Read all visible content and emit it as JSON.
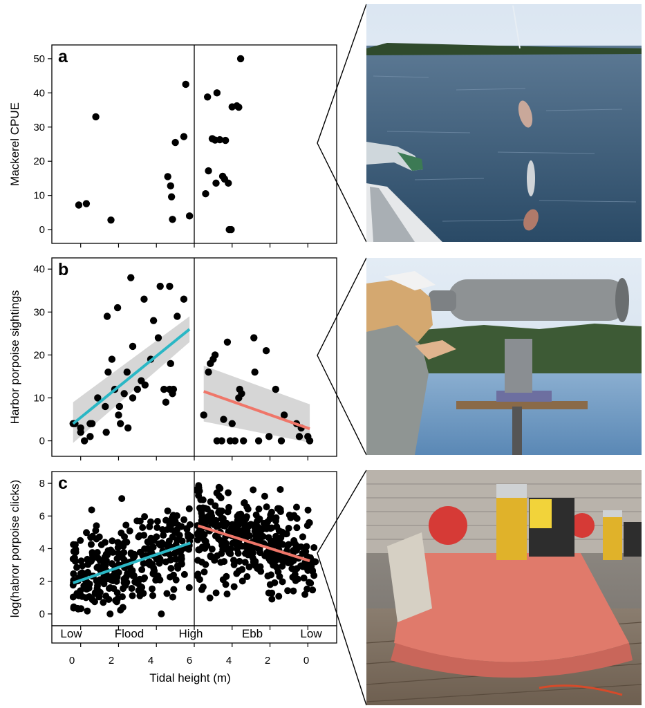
{
  "figure": {
    "x_axis_title": "Tidal height (m)",
    "x_tick_labels": [
      "0",
      "2",
      "4",
      "6",
      "4",
      "2",
      "0"
    ],
    "phase_labels": [
      "Low",
      "Flood",
      "High",
      "Ebb",
      "Low"
    ],
    "photo_descriptions": [],
    "photos": {
      "a": {
        "subject": "mackerel-catch-photo"
      },
      "b": {
        "subject": "big-eye-binocular-observer-photo"
      },
      "c": {
        "subject": "acoustic-mooring-photo"
      }
    }
  },
  "chart_data": [
    {
      "panel_label": "a",
      "type": "scatter",
      "ylabel": "Mackerel CPUE",
      "ylim": [
        -2,
        52
      ],
      "yticks": [
        0,
        10,
        20,
        30,
        40,
        50
      ],
      "xaxis_mode": "tidal-cycle",
      "x_domain": [
        -0.5,
        12.5
      ],
      "x_ticks_hidden_labels": true,
      "divider_at": 6,
      "points": [
        [
          -0.1,
          7.2
        ],
        [
          0.3,
          7.6
        ],
        [
          0.8,
          33
        ],
        [
          1.6,
          2.8
        ],
        [
          4.6,
          15.5
        ],
        [
          4.75,
          12.8
        ],
        [
          4.8,
          9.6
        ],
        [
          4.85,
          3.0
        ],
        [
          5.0,
          25.5
        ],
        [
          5.45,
          27.2
        ],
        [
          5.55,
          42.5
        ],
        [
          5.75,
          4.0
        ],
        [
          6.6,
          10.5
        ],
        [
          6.7,
          38.8
        ],
        [
          6.75,
          17.2
        ],
        [
          6.95,
          26.6
        ],
        [
          7.1,
          26.2
        ],
        [
          7.15,
          13.6
        ],
        [
          7.2,
          40.0
        ],
        [
          7.35,
          26.3
        ],
        [
          7.5,
          15.6
        ],
        [
          7.6,
          14.8
        ],
        [
          7.65,
          26.1
        ],
        [
          7.8,
          13.6
        ],
        [
          7.85,
          0.0
        ],
        [
          7.95,
          0.0
        ],
        [
          8.0,
          35.9
        ],
        [
          8.25,
          36.2
        ],
        [
          8.35,
          35.8
        ],
        [
          8.45,
          50.0
        ]
      ],
      "colors": {
        "points": "#000000"
      }
    },
    {
      "panel_label": "b",
      "type": "scatter",
      "ylabel": "Harbor porpoise sightings",
      "ylim": [
        -2,
        41
      ],
      "yticks": [
        0,
        10,
        20,
        30,
        40
      ],
      "xaxis_mode": "tidal-cycle",
      "x_domain": [
        -0.5,
        12.5
      ],
      "x_ticks_hidden_labels": true,
      "divider_at": 6,
      "points": [
        [
          -0.4,
          4
        ],
        [
          -0.3,
          4
        ],
        [
          0.0,
          3
        ],
        [
          0.0,
          2
        ],
        [
          0.2,
          0
        ],
        [
          0.5,
          4
        ],
        [
          0.6,
          4
        ],
        [
          0.5,
          1
        ],
        [
          0.9,
          10
        ],
        [
          1.3,
          8
        ],
        [
          1.35,
          2
        ],
        [
          1.4,
          29
        ],
        [
          1.45,
          16
        ],
        [
          1.65,
          19
        ],
        [
          1.8,
          12
        ],
        [
          1.95,
          31
        ],
        [
          2.0,
          6
        ],
        [
          2.05,
          8
        ],
        [
          2.1,
          4
        ],
        [
          2.3,
          11
        ],
        [
          2.45,
          16
        ],
        [
          2.5,
          3
        ],
        [
          2.65,
          38
        ],
        [
          2.75,
          22
        ],
        [
          2.75,
          10
        ],
        [
          3.0,
          12
        ],
        [
          3.2,
          14
        ],
        [
          3.35,
          33
        ],
        [
          3.4,
          13
        ],
        [
          3.7,
          19
        ],
        [
          3.85,
          28
        ],
        [
          4.1,
          24
        ],
        [
          4.2,
          36
        ],
        [
          4.4,
          12
        ],
        [
          4.5,
          9
        ],
        [
          4.7,
          36
        ],
        [
          4.7,
          12
        ],
        [
          4.75,
          18
        ],
        [
          4.85,
          11
        ],
        [
          4.9,
          12
        ],
        [
          5.1,
          29
        ],
        [
          5.45,
          33
        ],
        [
          6.5,
          6
        ],
        [
          6.75,
          16
        ],
        [
          6.85,
          18
        ],
        [
          7.0,
          19
        ],
        [
          7.1,
          20
        ],
        [
          7.2,
          0
        ],
        [
          7.45,
          0
        ],
        [
          7.55,
          5
        ],
        [
          7.75,
          23
        ],
        [
          7.9,
          0
        ],
        [
          8.0,
          4
        ],
        [
          8.15,
          0
        ],
        [
          8.35,
          10
        ],
        [
          8.4,
          12
        ],
        [
          8.5,
          11
        ],
        [
          8.6,
          0
        ],
        [
          9.15,
          24
        ],
        [
          9.2,
          16
        ],
        [
          9.4,
          0
        ],
        [
          9.8,
          21
        ],
        [
          9.95,
          1
        ],
        [
          10.3,
          12
        ],
        [
          10.6,
          0
        ],
        [
          10.75,
          6
        ],
        [
          11.4,
          4
        ],
        [
          11.55,
          1
        ],
        [
          11.65,
          3
        ],
        [
          12.0,
          1
        ],
        [
          12.1,
          0
        ]
      ],
      "fits": [
        {
          "x": [
            -0.4,
            5.75
          ],
          "y": [
            4,
            26
          ],
          "ci_upper": [
            9,
            29
          ],
          "ci_lower": [
            -0.5,
            23
          ],
          "color": "#2ab7c5"
        },
        {
          "x": [
            6.5,
            12.1
          ],
          "y": [
            11.5,
            2.8
          ],
          "ci_upper": [
            17.5,
            8.5
          ],
          "ci_lower": [
            4.5,
            -0.4
          ],
          "color": "#ef7669"
        }
      ],
      "colors": {
        "points": "#000000",
        "ci_band": "#cfcfcf"
      }
    },
    {
      "panel_label": "c",
      "type": "scatter",
      "ylabel": "log(habror porpoise clicks)",
      "ylim": [
        -0.3,
        8.3
      ],
      "yticks": [
        0,
        2,
        4,
        6,
        8
      ],
      "xaxis_mode": "tidal-cycle",
      "x_domain": [
        -0.5,
        12.5
      ],
      "divider_at": 6,
      "point_cloud": {
        "n_points": 700,
        "seed": 7
      },
      "fits": [
        {
          "x": [
            -0.4,
            5.8
          ],
          "y": [
            1.9,
            4.35
          ],
          "color": "#2ab7c5"
        },
        {
          "x": [
            6.2,
            12.1
          ],
          "y": [
            5.4,
            3.25
          ],
          "color": "#ef7669"
        }
      ],
      "colors": {
        "points": "#000000"
      }
    }
  ]
}
